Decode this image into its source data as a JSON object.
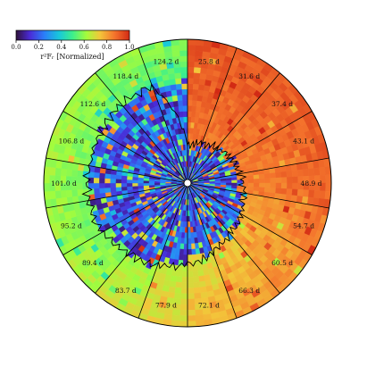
{
  "chart_data": {
    "type": "heatmap",
    "layout": "polar wedges (time-series snapshots)",
    "colorbar": {
      "label": "r²Fᵣ [Normalized]",
      "min": 0.0,
      "max": 1.0,
      "ticks": [
        "0.0",
        "0.2",
        "0.4",
        "0.6",
        "0.8",
        "1.0"
      ],
      "colormap": "jet-like (purple-blue-cyan-green-yellow-orange-red)"
    },
    "wedges": [
      {
        "label": "25.8 d"
      },
      {
        "label": "31.6 d"
      },
      {
        "label": "37.4 d"
      },
      {
        "label": "43.1 d"
      },
      {
        "label": "48.9 d"
      },
      {
        "label": "54.7 d"
      },
      {
        "label": "60.5 d"
      },
      {
        "label": "66.3 d"
      },
      {
        "label": "72.1 d"
      },
      {
        "label": "77.9 d"
      },
      {
        "label": "83.7 d"
      },
      {
        "label": "89.4 d"
      },
      {
        "label": "95.2 d"
      },
      {
        "label": "101.0 d"
      },
      {
        "label": "106.8 d"
      },
      {
        "label": "112.6 d"
      },
      {
        "label": "118.4 d"
      },
      {
        "label": "124.2 d"
      }
    ],
    "wedge_outer_level": [
      0.93,
      0.92,
      0.92,
      0.91,
      0.9,
      0.86,
      0.83,
      0.8,
      0.76,
      0.72,
      0.68,
      0.64,
      0.62,
      0.62,
      0.63,
      0.62,
      0.6,
      0.58
    ],
    "inner_region_radius_fraction": [
      0.26,
      0.29,
      0.32,
      0.35,
      0.37,
      0.4,
      0.43,
      0.46,
      0.52,
      0.57,
      0.61,
      0.64,
      0.68,
      0.7,
      0.69,
      0.7,
      0.71,
      0.72
    ]
  }
}
